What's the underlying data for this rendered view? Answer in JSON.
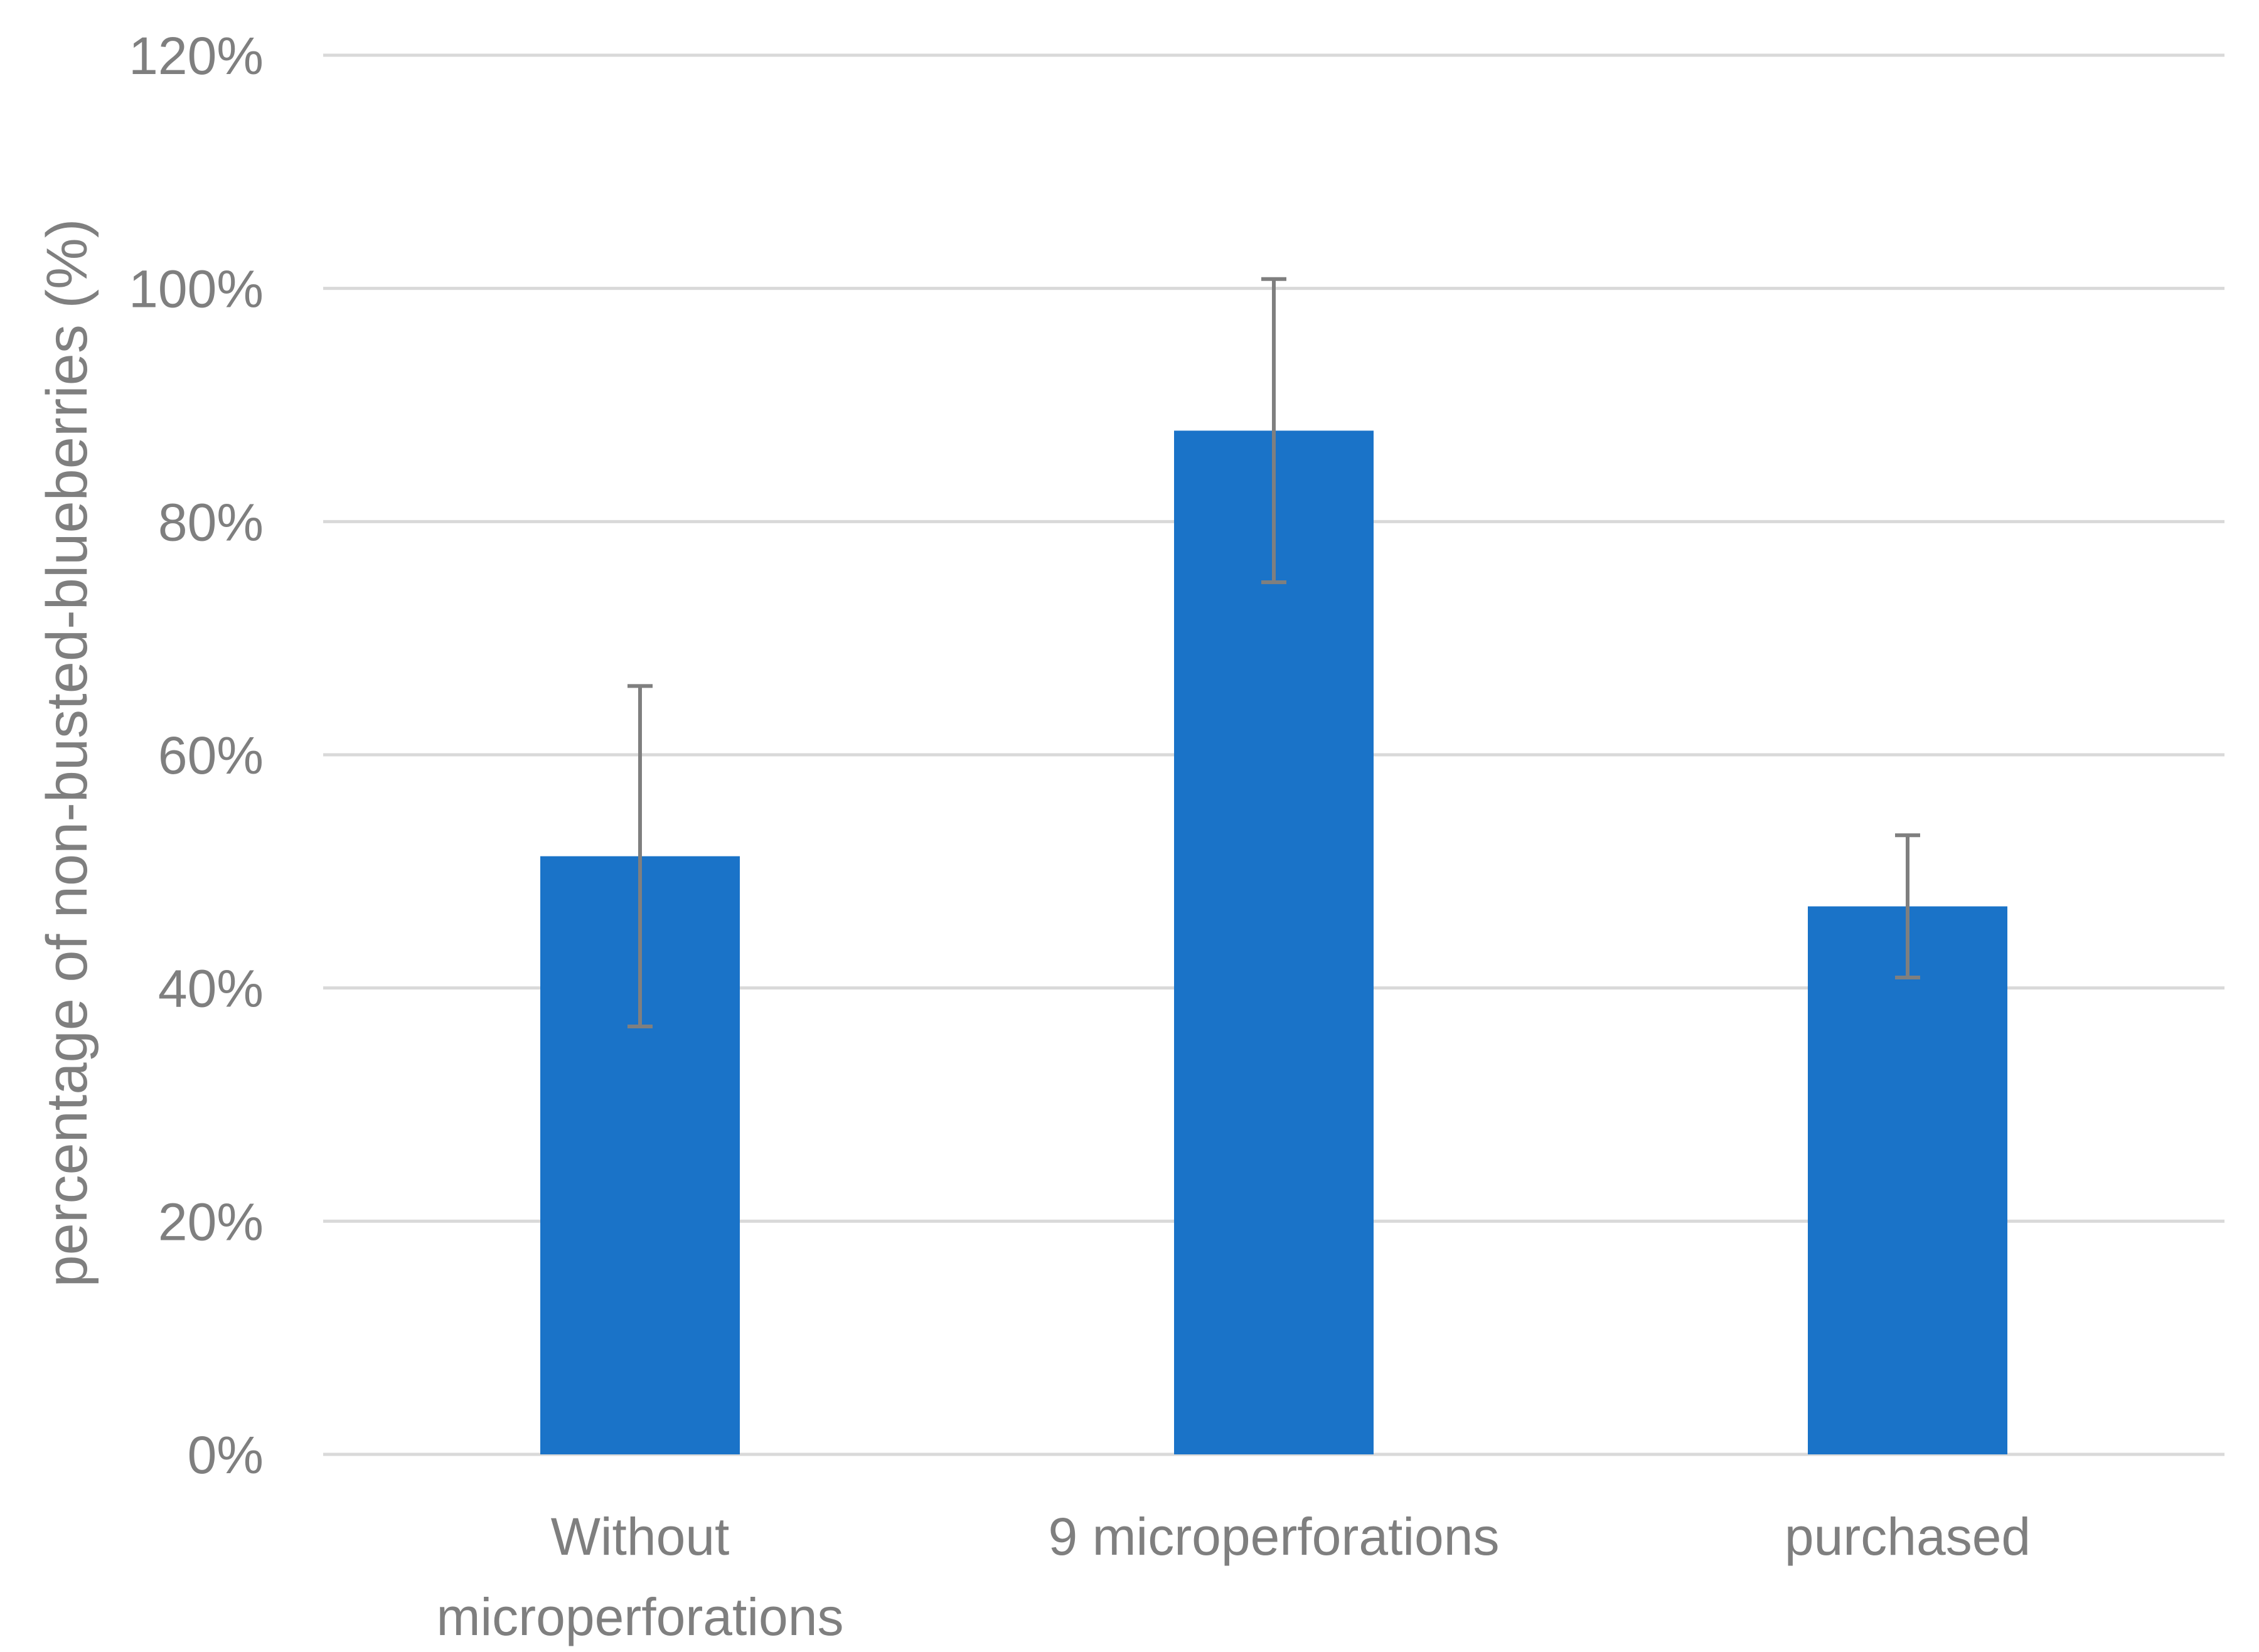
{
  "chart_data": {
    "type": "bar",
    "title": "",
    "xlabel": "",
    "ylabel": "percentage of non-busted-blueberries (%)",
    "ylim": [
      0,
      120
    ],
    "y_ticks": [
      0,
      20,
      40,
      60,
      80,
      100,
      120
    ],
    "y_tick_labels": [
      "0%",
      "20%",
      "40%",
      "60%",
      "80%",
      "100%",
      "120%"
    ],
    "categories": [
      [
        "Without",
        "microperforations"
      ],
      [
        "9 microperforations"
      ],
      [
        "purchased"
      ]
    ],
    "values": [
      51.3,
      87.8,
      47.0
    ],
    "error_bars": [
      14.6,
      13.0,
      6.1
    ],
    "grid": true,
    "legend": "none",
    "colors": {
      "bar": "#1a73c8",
      "error_bar": "#7f7f7f",
      "grid": "#d9d9d9",
      "text": "#7f7f7f"
    }
  }
}
